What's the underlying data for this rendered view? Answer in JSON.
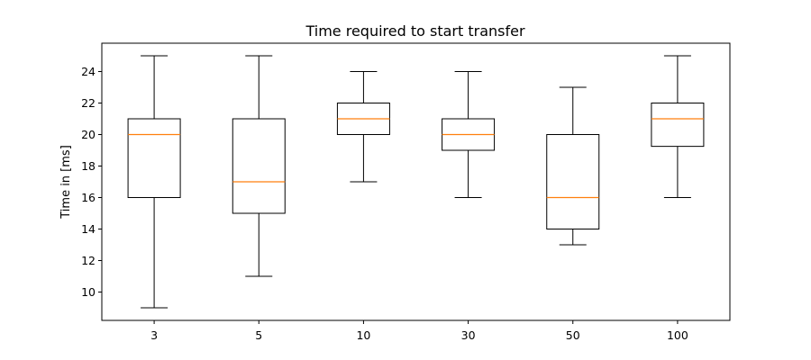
{
  "chart_data": {
    "type": "boxplot",
    "title": "Time required to start transfer",
    "xlabel": "",
    "ylabel": "Time in [ms]",
    "categories": [
      "3",
      "5",
      "10",
      "30",
      "50",
      "100"
    ],
    "boxes": [
      {
        "whisker_low": 9,
        "q1": 16,
        "median": 20,
        "q3": 21,
        "whisker_high": 25
      },
      {
        "whisker_low": 11,
        "q1": 15,
        "median": 17,
        "q3": 21,
        "whisker_high": 25
      },
      {
        "whisker_low": 17,
        "q1": 20,
        "median": 21,
        "q3": 22,
        "whisker_high": 24
      },
      {
        "whisker_low": 16,
        "q1": 19,
        "median": 20,
        "q3": 21,
        "whisker_high": 24
      },
      {
        "whisker_low": 13,
        "q1": 14,
        "median": 16,
        "q3": 20,
        "whisker_high": 23
      },
      {
        "whisker_low": 16,
        "q1": 19.25,
        "median": 21,
        "q3": 22,
        "whisker_high": 25
      }
    ],
    "yticks": [
      10,
      12,
      14,
      16,
      18,
      20,
      22,
      24
    ],
    "ylim": [
      8.2,
      25.8
    ],
    "grid": false,
    "colors": {
      "box": "#000000",
      "median": "#ff7f0e"
    }
  }
}
